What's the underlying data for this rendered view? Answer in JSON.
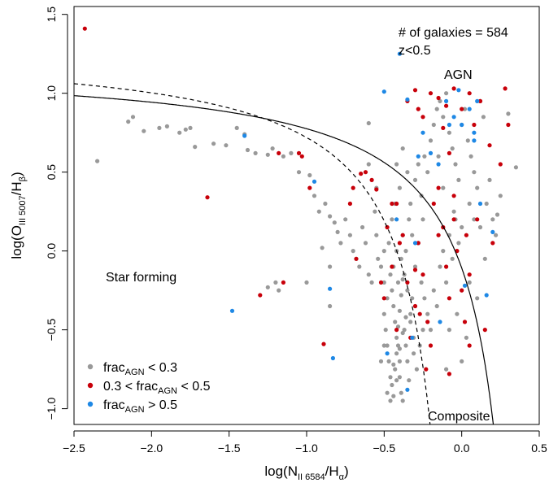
{
  "chart_data": {
    "type": "scatter",
    "title": "",
    "xlabel": {
      "base": "log(N",
      "sub1": "II 6584",
      "mid": "/H",
      "sub2": "α",
      "end": ")"
    },
    "ylabel": {
      "base": "log(O",
      "sub1": "III 5007",
      "mid": "/H",
      "sub2": "β",
      "end": ")"
    },
    "xlim": [
      -2.5,
      0.5
    ],
    "ylim": [
      -1.1,
      1.55
    ],
    "xticks": [
      -2.5,
      -2.0,
      -1.5,
      -1.0,
      -0.5,
      0.0,
      0.5
    ],
    "xtick_labels": [
      "−2.5",
      "−2.0",
      "−1.5",
      "−1.0",
      "−0.5",
      "0.0",
      "0.5"
    ],
    "yticks": [
      -1.0,
      -0.5,
      0.0,
      0.5,
      1.0,
      1.5
    ],
    "ytick_labels": [
      "−1.0",
      "−0.5",
      "0.0",
      "0.5",
      "1.0",
      "1.5"
    ],
    "annotations": {
      "count": "# of galaxies = 584",
      "redshift": "z<0.5",
      "agn": "AGN",
      "star_forming": "Star forming",
      "composite": "Composite"
    },
    "curves": [
      {
        "style": "solid",
        "formula": "0.61/(x-0.47)+1.19"
      },
      {
        "style": "dashed",
        "formula": "0.61/(x-0.05)+1.3"
      }
    ],
    "legend": {
      "position": "bottom-left",
      "entries": [
        {
          "color": "#999999",
          "pre": "frac",
          "sub": "AGN",
          "post": " < 0.3"
        },
        {
          "color": "#c8000a",
          "pre": "0.3 < frac",
          "sub": "AGN",
          "post": " < 0.5"
        },
        {
          "color": "#1e88e5",
          "pre": "frac",
          "sub": "AGN",
          "post": " > 0.5"
        }
      ]
    },
    "series": [
      {
        "key": "low",
        "color": "#999999",
        "points": [
          [
            -2.35,
            0.57
          ],
          [
            -2.15,
            0.82
          ],
          [
            -2.12,
            0.85
          ],
          [
            -2.05,
            0.76
          ],
          [
            -1.95,
            0.78
          ],
          [
            -1.9,
            0.79
          ],
          [
            -1.82,
            0.75
          ],
          [
            -1.78,
            0.77
          ],
          [
            -1.75,
            0.78
          ],
          [
            -1.72,
            0.66
          ],
          [
            -1.6,
            0.68
          ],
          [
            -1.52,
            0.67
          ],
          [
            -1.45,
            0.78
          ],
          [
            -1.4,
            0.74
          ],
          [
            -1.38,
            0.64
          ],
          [
            -1.33,
            0.62
          ],
          [
            -1.25,
            0.61
          ],
          [
            -1.22,
            0.65
          ],
          [
            -1.15,
            0.6
          ],
          [
            -1.1,
            0.62
          ],
          [
            -1.05,
            0.5
          ],
          [
            -0.98,
            0.48
          ],
          [
            -0.95,
            0.35
          ],
          [
            -0.92,
            0.25
          ],
          [
            -0.88,
            0.3
          ],
          [
            -0.85,
            0.22
          ],
          [
            -0.82,
            0.18
          ],
          [
            -0.8,
            0.12
          ],
          [
            -0.78,
            0.05
          ],
          [
            -0.85,
            -0.1
          ],
          [
            -0.9,
            0.02
          ],
          [
            -1.2,
            -0.2
          ],
          [
            -1.18,
            -0.25
          ],
          [
            -1.0,
            -0.2
          ],
          [
            -1.25,
            -0.23
          ],
          [
            -0.85,
            -0.35
          ],
          [
            -0.75,
            0.2
          ],
          [
            -0.72,
            0.1
          ],
          [
            -0.7,
            0.0
          ],
          [
            -0.68,
            -0.05
          ],
          [
            -0.66,
            -0.1
          ],
          [
            -0.64,
            0.15
          ],
          [
            -0.62,
            0.05
          ],
          [
            -0.6,
            -0.15
          ],
          [
            -0.58,
            -0.2
          ],
          [
            -0.56,
            0.25
          ],
          [
            -0.55,
            0.1
          ],
          [
            -0.54,
            -0.05
          ],
          [
            -0.52,
            -0.1
          ],
          [
            -0.5,
            0.0
          ],
          [
            -0.5,
            -0.2
          ],
          [
            -0.48,
            -0.3
          ],
          [
            -0.47,
            0.05
          ],
          [
            -0.46,
            -0.15
          ],
          [
            -0.45,
            -0.25
          ],
          [
            -0.44,
            -0.35
          ],
          [
            -0.43,
            -0.45
          ],
          [
            -0.42,
            -0.55
          ],
          [
            -0.41,
            -0.6
          ],
          [
            -0.4,
            -0.7
          ],
          [
            -0.4,
            -0.8
          ],
          [
            -0.39,
            -0.9
          ],
          [
            -0.38,
            -0.95
          ],
          [
            -0.5,
            -0.4
          ],
          [
            -0.49,
            -0.5
          ],
          [
            -0.48,
            -0.6
          ],
          [
            -0.47,
            -0.7
          ],
          [
            -0.46,
            -0.8
          ],
          [
            -0.45,
            -0.85
          ],
          [
            -0.44,
            -0.92
          ],
          [
            -0.43,
            -0.75
          ],
          [
            -0.42,
            -0.65
          ],
          [
            -0.41,
            -0.48
          ],
          [
            -0.4,
            -0.38
          ],
          [
            -0.39,
            -0.28
          ],
          [
            -0.38,
            -0.18
          ],
          [
            -0.37,
            -0.5
          ],
          [
            -0.36,
            -0.6
          ],
          [
            -0.35,
            -0.7
          ],
          [
            -0.34,
            -0.82
          ],
          [
            -0.33,
            -0.4
          ],
          [
            -0.32,
            -0.3
          ],
          [
            -0.31,
            -0.55
          ],
          [
            -0.45,
            0.2
          ],
          [
            -0.43,
            0.3
          ],
          [
            -0.4,
            0.4
          ],
          [
            -0.38,
            0.1
          ],
          [
            -0.36,
            0.0
          ],
          [
            -0.34,
            0.2
          ],
          [
            -0.32,
            0.1
          ],
          [
            -0.3,
            -0.1
          ],
          [
            -0.28,
            0.05
          ],
          [
            -0.26,
            -0.2
          ],
          [
            -0.24,
            -0.3
          ],
          [
            -0.22,
            -0.4
          ],
          [
            -0.2,
            -0.5
          ],
          [
            -0.18,
            -0.25
          ],
          [
            -0.16,
            -0.35
          ],
          [
            -0.14,
            -0.1
          ],
          [
            -0.12,
            0.0
          ],
          [
            -0.1,
            -0.2
          ],
          [
            -0.08,
            0.1
          ],
          [
            -0.06,
            -0.05
          ],
          [
            -0.04,
            0.2
          ],
          [
            -0.02,
            0.05
          ],
          [
            -0.3,
            0.45
          ],
          [
            -0.28,
            0.55
          ],
          [
            -0.26,
            0.35
          ],
          [
            -0.24,
            0.6
          ],
          [
            -0.22,
            0.5
          ],
          [
            -0.2,
            0.7
          ],
          [
            -0.18,
            0.8
          ],
          [
            -0.16,
            0.9
          ],
          [
            -0.14,
            0.95
          ],
          [
            -0.12,
            0.85
          ],
          [
            -0.1,
            1.0
          ],
          [
            -0.08,
            0.75
          ],
          [
            -0.06,
            0.65
          ],
          [
            -0.04,
            0.55
          ],
          [
            -0.02,
            0.45
          ],
          [
            0.0,
            0.8
          ],
          [
            0.02,
            0.9
          ],
          [
            0.04,
            0.7
          ],
          [
            0.06,
            0.6
          ],
          [
            0.08,
            0.5
          ],
          [
            0.1,
            0.4
          ],
          [
            0.12,
            0.95
          ],
          [
            0.14,
            0.85
          ],
          [
            0.16,
            0.3
          ],
          [
            0.18,
            0.45
          ],
          [
            0.2,
            0.2
          ],
          [
            0.22,
            0.1
          ],
          [
            0.25,
            0.35
          ],
          [
            0.3,
            0.87
          ],
          [
            0.35,
            0.53
          ],
          [
            0.23,
            0.23
          ],
          [
            -0.6,
            0.81
          ],
          [
            -0.55,
            0.4
          ],
          [
            -0.6,
            0.55
          ],
          [
            -0.42,
            0.55
          ],
          [
            -0.38,
            0.65
          ],
          [
            -0.35,
            0.5
          ],
          [
            -0.33,
            0.3
          ],
          [
            -0.15,
            0.6
          ],
          [
            -0.12,
            0.4
          ],
          [
            -0.25,
            0.2
          ],
          [
            -0.05,
            0.25
          ],
          [
            0.0,
            0.15
          ],
          [
            0.05,
            0.3
          ],
          [
            0.08,
            0.2
          ],
          [
            0.12,
            0.15
          ],
          [
            0.15,
            -0.05
          ],
          [
            0.1,
            -0.3
          ],
          [
            0.05,
            -0.2
          ],
          [
            -0.08,
            -0.5
          ],
          [
            -0.03,
            -0.4
          ],
          [
            0.0,
            -0.7
          ],
          [
            0.03,
            -0.55
          ],
          [
            -0.1,
            -0.75
          ],
          [
            -0.44,
            -0.1
          ],
          [
            -0.42,
            0.0
          ],
          [
            -0.41,
            -0.2
          ],
          [
            -0.39,
            -0.05
          ],
          [
            -0.37,
            -0.15
          ],
          [
            -0.35,
            -0.25
          ],
          [
            -0.33,
            -0.45
          ],
          [
            -0.31,
            -0.65
          ],
          [
            -0.29,
            -0.75
          ],
          [
            -0.27,
            -0.6
          ],
          [
            -0.25,
            -0.5
          ],
          [
            -0.5,
            -0.6
          ],
          [
            -0.52,
            -0.7
          ],
          [
            -0.48,
            -0.9
          ],
          [
            -0.46,
            -0.95
          ],
          [
            -0.44,
            -0.72
          ],
          [
            -0.42,
            -0.82
          ],
          [
            -0.4,
            -0.62
          ],
          [
            -0.38,
            -0.52
          ],
          [
            -0.36,
            -0.42
          ]
        ]
      },
      {
        "key": "mid",
        "color": "#c8000a",
        "points": [
          [
            -2.43,
            1.41
          ],
          [
            -1.64,
            0.34
          ],
          [
            -1.3,
            -0.28
          ],
          [
            -1.18,
            0.62
          ],
          [
            -1.15,
            -0.2
          ],
          [
            -1.05,
            0.62
          ],
          [
            -1.03,
            0.6
          ],
          [
            -0.98,
            0.4
          ],
          [
            -0.89,
            -0.59
          ],
          [
            -0.65,
            0.49
          ],
          [
            -0.7,
            0.4
          ],
          [
            -0.72,
            0.3
          ],
          [
            -0.68,
            -0.05
          ],
          [
            -0.62,
            0.5
          ],
          [
            -0.58,
            0.45
          ],
          [
            -0.55,
            0.39
          ],
          [
            -0.52,
            -0.2
          ],
          [
            -0.48,
            0.15
          ],
          [
            -0.45,
            -0.1
          ],
          [
            -0.42,
            0.3
          ],
          [
            -0.38,
            0.1
          ],
          [
            -0.35,
            -0.2
          ],
          [
            -0.3,
            -0.35
          ],
          [
            -0.28,
            0.05
          ],
          [
            -0.25,
            -0.15
          ],
          [
            -0.22,
            -0.45
          ],
          [
            -0.2,
            -0.6
          ],
          [
            -0.18,
            0.3
          ],
          [
            -0.15,
            0.4
          ],
          [
            -0.12,
            0.15
          ],
          [
            -0.1,
            -0.1
          ],
          [
            -0.08,
            -0.3
          ],
          [
            -0.05,
            0.2
          ],
          [
            -0.03,
            0.0
          ],
          [
            0.0,
            -0.25
          ],
          [
            0.03,
            0.1
          ],
          [
            0.05,
            -0.15
          ],
          [
            0.1,
            0.2
          ],
          [
            0.15,
            -0.5
          ],
          [
            0.2,
            0.05
          ],
          [
            0.25,
            0.55
          ],
          [
            0.3,
            0.8
          ],
          [
            -0.35,
            0.95
          ],
          [
            -0.3,
            1.02
          ],
          [
            -0.28,
            0.9
          ],
          [
            -0.25,
            0.85
          ],
          [
            -0.2,
            1.0
          ],
          [
            -0.15,
            0.97
          ],
          [
            -0.1,
            0.92
          ],
          [
            -0.05,
            1.03
          ],
          [
            0.0,
            0.9
          ],
          [
            0.05,
            1.0
          ],
          [
            0.08,
            0.8
          ],
          [
            0.12,
            0.95
          ],
          [
            0.18,
            0.67
          ],
          [
            0.28,
            1.03
          ],
          [
            -0.12,
            0.78
          ],
          [
            -0.08,
            0.62
          ],
          [
            -0.45,
            0.3
          ],
          [
            -0.4,
            0.05
          ],
          [
            -0.5,
            -0.3
          ],
          [
            -0.42,
            -0.5
          ],
          [
            -0.33,
            -0.55
          ],
          [
            -0.27,
            -0.4
          ],
          [
            -0.23,
            -0.75
          ],
          [
            -0.08,
            -0.78
          ],
          [
            0.05,
            -0.6
          ],
          [
            0.02,
            -0.45
          ],
          [
            -0.05,
            0.35
          ],
          [
            -0.15,
            0.1
          ],
          [
            -0.3,
            -0.12
          ]
        ]
      },
      {
        "key": "high",
        "color": "#1e88e5",
        "points": [
          [
            -1.48,
            -0.38
          ],
          [
            -1.4,
            0.73
          ],
          [
            -0.95,
            0.44
          ],
          [
            -0.85,
            -0.24
          ],
          [
            -0.83,
            -0.68
          ],
          [
            -0.5,
            1.01
          ],
          [
            -0.4,
            1.25
          ],
          [
            -0.35,
            0.96
          ],
          [
            -0.32,
            -0.55
          ],
          [
            -0.35,
            -0.88
          ],
          [
            -0.48,
            -0.65
          ],
          [
            -0.42,
            0.2
          ],
          [
            -0.3,
            0.05
          ],
          [
            -0.28,
            0.6
          ],
          [
            -0.25,
            0.75
          ],
          [
            -0.2,
            0.62
          ],
          [
            -0.15,
            0.55
          ],
          [
            -0.1,
            0.95
          ],
          [
            -0.08,
            0.8
          ],
          [
            -0.05,
            0.85
          ],
          [
            0.0,
            0.8
          ],
          [
            0.05,
            0.9
          ],
          [
            0.08,
            0.75
          ],
          [
            0.02,
            -0.22
          ],
          [
            0.08,
            0.7
          ],
          [
            0.12,
            0.3
          ],
          [
            0.16,
            -0.28
          ],
          [
            0.2,
            0.12
          ],
          [
            -0.14,
            -0.45
          ],
          [
            -0.02,
            1.02
          ],
          [
            0.1,
            0.95
          ]
        ]
      }
    ]
  }
}
